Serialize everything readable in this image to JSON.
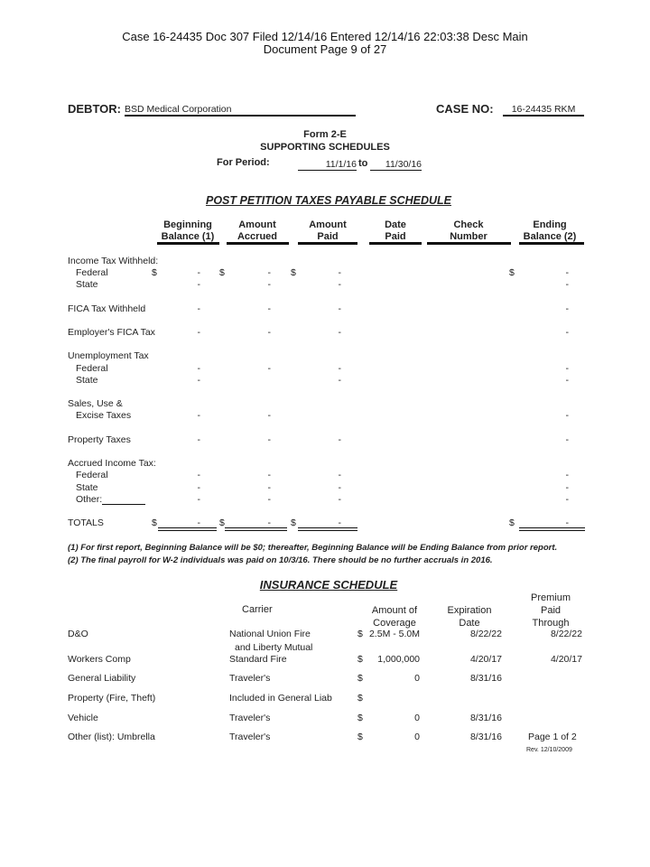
{
  "court_header": {
    "line1": "Case 16-24435    Doc 307    Filed 12/14/16    Entered 12/14/16 22:03:38    Desc Main",
    "line2": "Document      Page 9 of 27"
  },
  "debtor": {
    "label": "DEBTOR:",
    "value": "BSD Medical Corporation"
  },
  "case_no": {
    "label": "CASE NO:",
    "value": "16-24435 RKM"
  },
  "form": {
    "number": "Form 2-E",
    "title": "SUPPORTING SCHEDULES",
    "period_label": "For Period:",
    "period_start": "11/1/16",
    "period_to": "to",
    "period_end": "11/30/16"
  },
  "taxes": {
    "title": "POST PETITION TAXES PAYABLE SCHEDULE",
    "columns": [
      [
        "Beginning",
        "Balance (1)"
      ],
      [
        "Amount",
        "Accrued"
      ],
      [
        "Amount",
        "Paid"
      ],
      [
        "Date",
        "Paid"
      ],
      [
        "Check",
        "Number"
      ],
      [
        "Ending",
        "Balance (2)"
      ]
    ],
    "rows": [
      {
        "label": "Income Tax Withheld:",
        "indent": false
      },
      {
        "label": "Federal",
        "indent": true,
        "dollar": true,
        "begin": "-",
        "accrued": "-",
        "paid": "-",
        "ending": "-"
      },
      {
        "label": "State",
        "indent": true,
        "begin": "-",
        "accrued": "-",
        "paid": "-",
        "ending": "-"
      },
      {
        "label": "FICA Tax Withheld",
        "indent": false,
        "begin": "-",
        "accrued": "-",
        "paid": "-",
        "ending": "-"
      },
      {
        "label": "Employer's FICA Tax",
        "indent": false,
        "begin": "-",
        "accrued": "-",
        "paid": "-",
        "ending": "-"
      },
      {
        "label": "Unemployment Tax",
        "indent": false
      },
      {
        "label": "Federal",
        "indent": true,
        "begin": "-",
        "accrued": "-",
        "paid": "-",
        "ending": "-"
      },
      {
        "label": "State",
        "indent": true,
        "begin": "-",
        "accrued": "",
        "paid": "-",
        "ending": "-"
      },
      {
        "label": "Sales, Use &",
        "indent": false
      },
      {
        "label": "Excise Taxes",
        "indent": true,
        "begin": "-",
        "accrued": "-",
        "paid": "",
        "ending": "-"
      },
      {
        "label": "Property Taxes",
        "indent": false,
        "begin": "-",
        "accrued": "-",
        "paid": "-",
        "ending": "-"
      },
      {
        "label": "Accrued Income Tax:",
        "indent": false
      },
      {
        "label": "Federal",
        "indent": true,
        "begin": "-",
        "accrued": "-",
        "paid": "-",
        "ending": "-"
      },
      {
        "label": "State",
        "indent": true,
        "begin": "-",
        "accrued": "-",
        "paid": "-",
        "ending": "-"
      },
      {
        "label": "Other:",
        "indent": true,
        "other_blank": true,
        "begin": "-",
        "accrued": "-",
        "paid": "-",
        "ending": "-"
      },
      {
        "label": "TOTALS",
        "indent": false,
        "dollar": true,
        "total": true,
        "begin": "-",
        "accrued": "-",
        "paid": "-",
        "ending": "-"
      }
    ],
    "dollar_sign": "$",
    "footnotes": [
      "(1)  For first report, Beginning Balance will be $0; thereafter, Beginning Balance will be Ending Balance from prior report.",
      "(2)  The final payroll for W-2 individuals was paid on 10/3/16.  There should be no further accruals in 2016."
    ]
  },
  "insurance": {
    "title": "INSURANCE SCHEDULE",
    "columns": {
      "carrier": "Carrier",
      "coverage": [
        "Amount of",
        "Coverage"
      ],
      "expiration": [
        "Expiration",
        "Date"
      ],
      "premium": [
        "Premium",
        "Paid",
        "Through"
      ]
    },
    "rows": [
      {
        "type": "D&O",
        "carrier": "National Union Fire",
        "carrier2": "and Liberty Mutual",
        "dollar": "$",
        "coverage": "2.5M - 5.0M",
        "expiration": "8/22/22",
        "premium": "8/22/22"
      },
      {
        "type": "Workers Comp",
        "carrier": "Standard Fire",
        "dollar": "$",
        "coverage": "1,000,000",
        "expiration": "4/20/17",
        "premium": "4/20/17"
      },
      {
        "type": "General Liability",
        "carrier": "Traveler's",
        "dollar": "$",
        "coverage": "0",
        "expiration": "8/31/16",
        "premium": ""
      },
      {
        "type": "Property (Fire, Theft)",
        "carrier": "Included in General Liab",
        "dollar": "$",
        "coverage": "",
        "expiration": "",
        "premium": ""
      },
      {
        "type": "Vehicle",
        "carrier": "Traveler's",
        "dollar": "$",
        "coverage": "0",
        "expiration": "8/31/16",
        "premium": ""
      },
      {
        "type": "Other (list): Umbrella",
        "carrier": "Traveler's",
        "dollar": "$",
        "coverage": "0",
        "expiration": "8/31/16",
        "premium": ""
      }
    ]
  },
  "footer": {
    "page": "Page 1 of 2",
    "rev": "Rev. 12/10/2009"
  }
}
